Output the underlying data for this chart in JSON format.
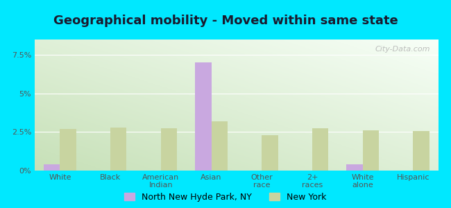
{
  "title": "Geographical mobility - Moved within same state",
  "categories": [
    "White",
    "Black",
    "American\nIndian",
    "Asian",
    "Other\nrace",
    "2+\nraces",
    "White\nalone",
    "Hispanic"
  ],
  "local_values": [
    0.4,
    0.0,
    0.0,
    7.0,
    0.0,
    0.0,
    0.4,
    0.0
  ],
  "ny_values": [
    2.7,
    2.8,
    2.75,
    3.2,
    2.3,
    2.75,
    2.6,
    2.55
  ],
  "local_color": "#c9a8e0",
  "ny_color": "#c8d4a0",
  "bg_gradient_bottom_left": "#b8d8a8",
  "bg_gradient_top_right": "#f0f8f0",
  "outer_background": "#00e8ff",
  "ylim_max": 8.5,
  "yticks": [
    0,
    2.5,
    5.0,
    7.5
  ],
  "ytick_labels": [
    "0%",
    "2.5%",
    "5%",
    "7.5%"
  ],
  "legend_local": "North New Hyde Park, NY",
  "legend_ny": "New York",
  "bar_width": 0.32,
  "title_fontsize": 13,
  "tick_fontsize": 8,
  "legend_fontsize": 9,
  "watermark": "City-Data.com"
}
